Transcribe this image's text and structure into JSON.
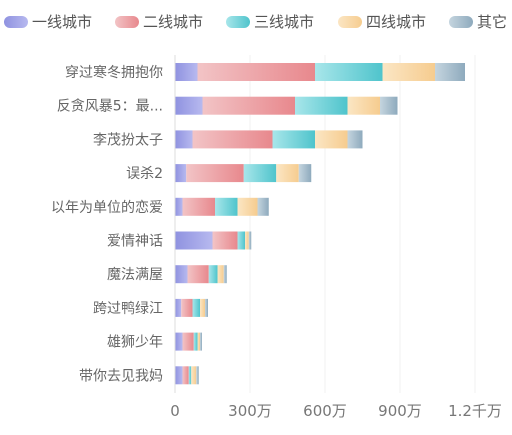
{
  "chart_data": {
    "type": "bar",
    "orientation": "horizontal",
    "stacked": true,
    "title": "",
    "xlabel": "",
    "ylabel": "",
    "categories": [
      "穿过寒冬拥抱你",
      "反贪风暴5：最...",
      "李茂扮太子",
      "误杀2",
      "以年为单位的恋爱",
      "爱情神话",
      "魔法满屋",
      "跨过鸭绿江",
      "雄狮少年",
      "带你去见我妈"
    ],
    "series": [
      {
        "name": "一线城市",
        "values": [
          90,
          110,
          70,
          45,
          30,
          150,
          50,
          25,
          30,
          30
        ],
        "color_start": "#8f92e0",
        "color_end": "#b7b9ef"
      },
      {
        "name": "二线城市",
        "values": [
          470,
          370,
          320,
          230,
          130,
          100,
          85,
          45,
          45,
          25
        ],
        "color_start": "#f2c4c6",
        "color_end": "#e8888d"
      },
      {
        "name": "三线城市",
        "values": [
          270,
          210,
          170,
          130,
          90,
          30,
          35,
          30,
          15,
          10
        ],
        "color_start": "#a8e6ea",
        "color_end": "#4fc4cc"
      },
      {
        "name": "四线城市",
        "values": [
          210,
          130,
          130,
          90,
          80,
          15,
          25,
          20,
          10,
          20
        ],
        "color_start": "#fbe6c4",
        "color_end": "#f6cc8f"
      },
      {
        "name": "其它",
        "values": [
          120,
          70,
          60,
          50,
          45,
          10,
          12,
          12,
          8,
          10
        ],
        "color_start": "#c5d5df",
        "color_end": "#8eaabd"
      }
    ],
    "unit": "万",
    "xlim": [
      0,
      1200
    ],
    "xticks": [
      0,
      300,
      600,
      900,
      1200
    ],
    "xtick_labels": [
      "0",
      "300万",
      "600万",
      "900万",
      "1.2千万"
    ],
    "legend_position": "top",
    "grid": true
  }
}
